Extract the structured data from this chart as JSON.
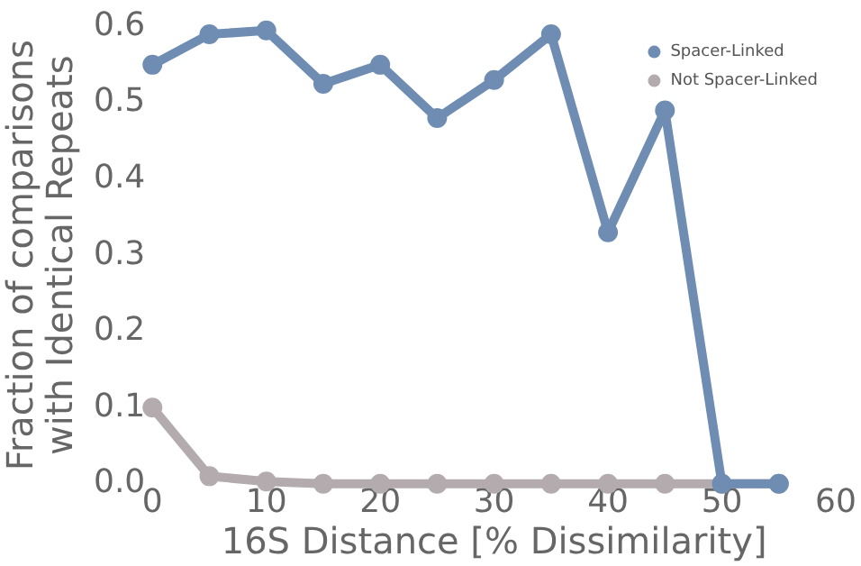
{
  "chart_data": {
    "type": "line",
    "xlabel": "16S Distance [% Dissimilarity]",
    "ylabel": "Fraction of comparisons\nwith Identical Repeats",
    "x": [
      0,
      5,
      10,
      15,
      20,
      25,
      30,
      35,
      40,
      45,
      50,
      55
    ],
    "series": [
      {
        "name": "Spacer-Linked",
        "color": "#6f8db3",
        "values": [
          0.55,
          0.59,
          0.595,
          0.525,
          0.55,
          0.48,
          0.53,
          0.59,
          0.33,
          0.49,
          0.0,
          0.0
        ]
      },
      {
        "name": "Not Spacer-Linked",
        "color": "#b3abae",
        "values": [
          0.1,
          0.01,
          0.003,
          0.0,
          0.0,
          0.0,
          0.0,
          0.0,
          0.0,
          0.0,
          0.0,
          0.0
        ]
      }
    ],
    "xlim": [
      0,
      60
    ],
    "xticks": [
      0,
      10,
      20,
      30,
      40,
      50,
      60
    ],
    "ylim": [
      0,
      0.6
    ],
    "yticks": [
      {
        "value": 0,
        "label": "0.0"
      },
      {
        "value": 0.1,
        "label": "0.1"
      },
      {
        "value": 0.2,
        "label": "0.2"
      },
      {
        "value": 0.3,
        "label": "0.3"
      },
      {
        "value": 0.4,
        "label": "0.4"
      },
      {
        "value": 0.5,
        "label": "0.5"
      },
      {
        "value": 0.6,
        "label": "0.6"
      }
    ],
    "grid": false,
    "legend": "top right",
    "marker": "circle",
    "line_style": "solid"
  }
}
